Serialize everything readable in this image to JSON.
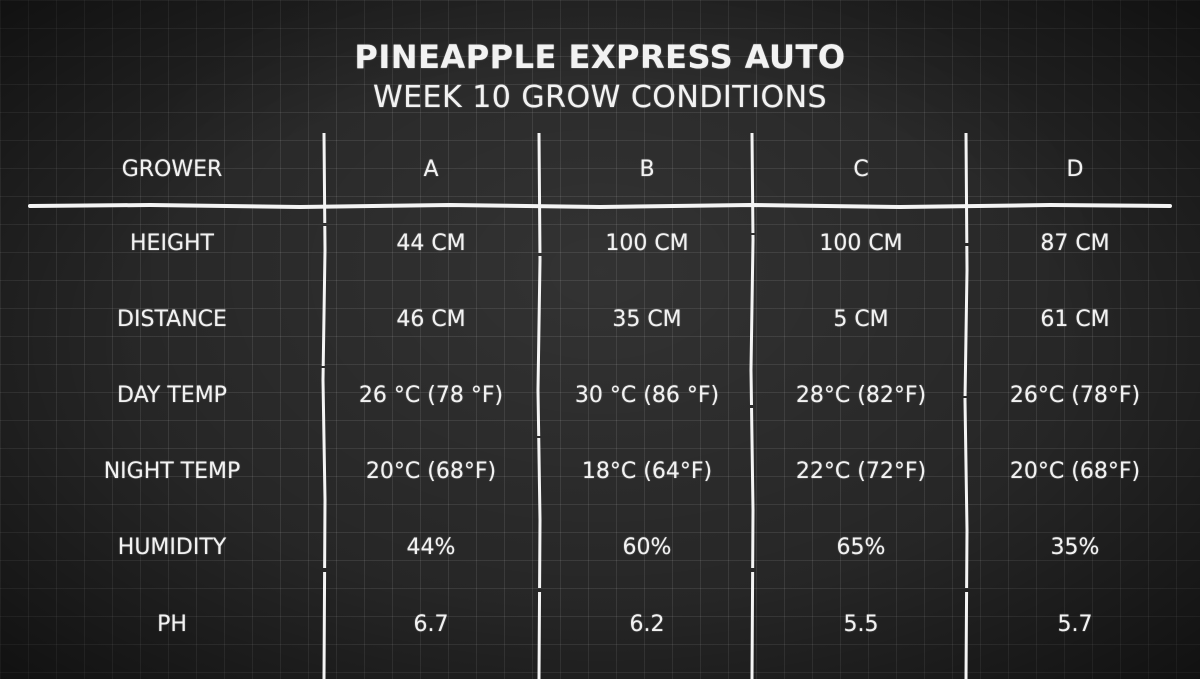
{
  "title": "PINEAPPLE EXPRESS AUTO",
  "subtitle": "WEEK 10 GROW CONDITIONS",
  "chart_data": {
    "type": "table",
    "title": "PINEAPPLE EXPRESS AUTO",
    "subtitle": "WEEK 10 GROW CONDITIONS",
    "columns": [
      "GROWER",
      "A",
      "B",
      "C",
      "D"
    ],
    "rows": [
      [
        "HEIGHT",
        "44 CM",
        "100 CM",
        "100 CM",
        "87 CM"
      ],
      [
        "DISTANCE",
        "46 CM",
        "35 CM",
        "5 CM",
        "61 CM"
      ],
      [
        "DAY TEMP",
        "26 °C (78 °F)",
        "30 °C (86 °F)",
        "28°C (82°F)",
        "26°C (78°F)"
      ],
      [
        "NIGHT TEMP",
        "20°C (68°F)",
        "18°C (64°F)",
        "22°C (72°F)",
        "20°C (68°F)"
      ],
      [
        "HUMIDITY",
        "44%",
        "60%",
        "65%",
        "35%"
      ],
      [
        "PH",
        "6.7",
        "6.2",
        "5.5",
        "5.7"
      ]
    ]
  },
  "colors": {
    "background": "#262626",
    "chalk": "#f2f2f2"
  }
}
